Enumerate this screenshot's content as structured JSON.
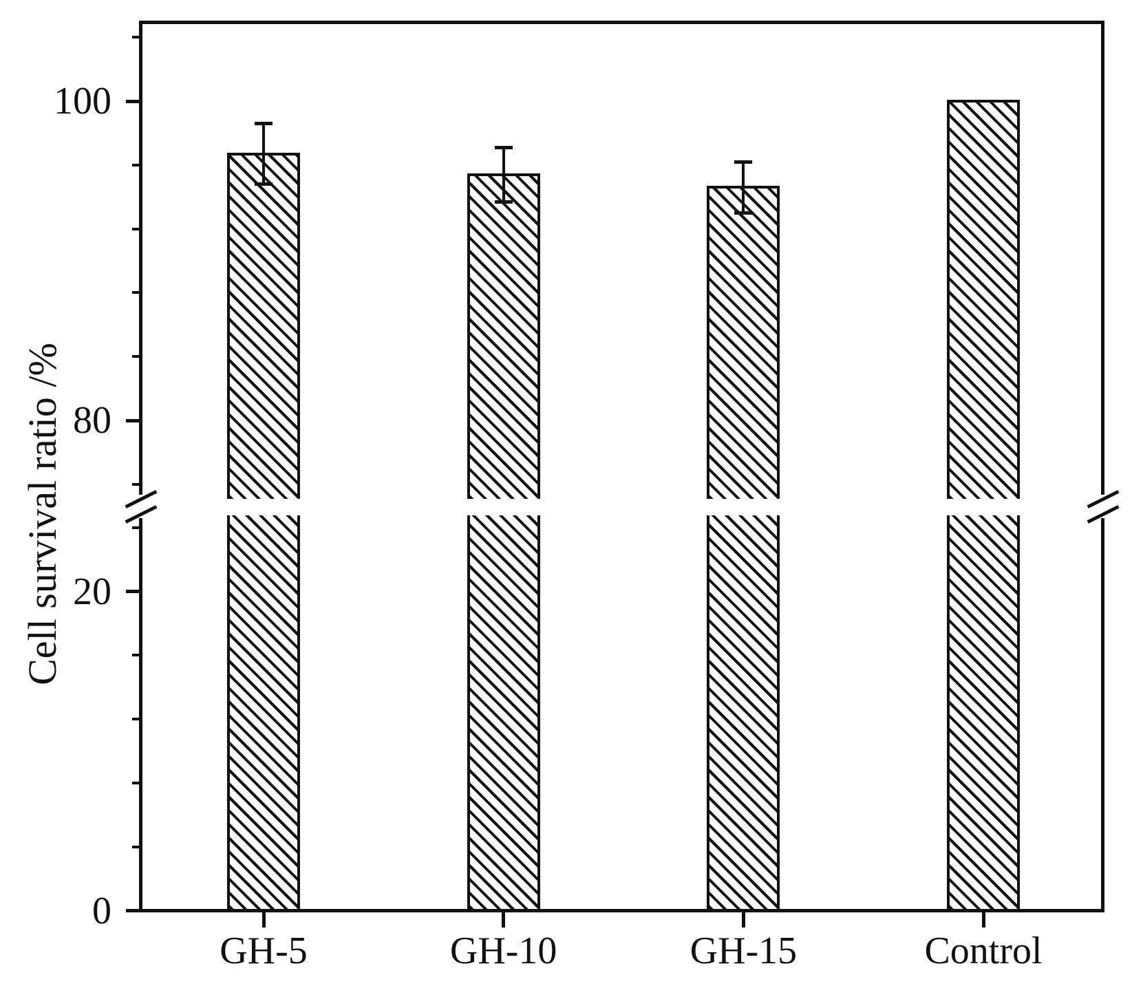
{
  "chart_data": {
    "type": "bar",
    "title": "",
    "xlabel": "",
    "ylabel": "Cell survival ratio /%",
    "categories": [
      "GH-5",
      "GH-10",
      "GH-15",
      "Control"
    ],
    "values": [
      96.7,
      95.4,
      94.6,
      100
    ],
    "error_bars": [
      1.9,
      1.7,
      1.6,
      null
    ],
    "y_axis": {
      "major_ticks": [
        {
          "value": 100,
          "label": "100"
        },
        {
          "value": 80,
          "label": "80"
        },
        {
          "value": 20,
          "label": "20"
        },
        {
          "value": 0,
          "label": "0"
        }
      ],
      "minor_ticks_upper_segment": [
        104,
        96,
        92,
        88,
        84,
        76
      ],
      "minor_ticks_lower_segment": [
        24,
        16,
        12,
        8,
        4
      ],
      "segments": [
        [
          0,
          24.7
        ],
        [
          75,
          105
        ]
      ],
      "break_between": [
        25,
        75
      ]
    },
    "grid": false,
    "legend": false,
    "style": {
      "bar_fill": "#ffffff",
      "bar_hatch": "diagonal-down",
      "line_color": "#111111",
      "background": "#ffffff"
    }
  }
}
